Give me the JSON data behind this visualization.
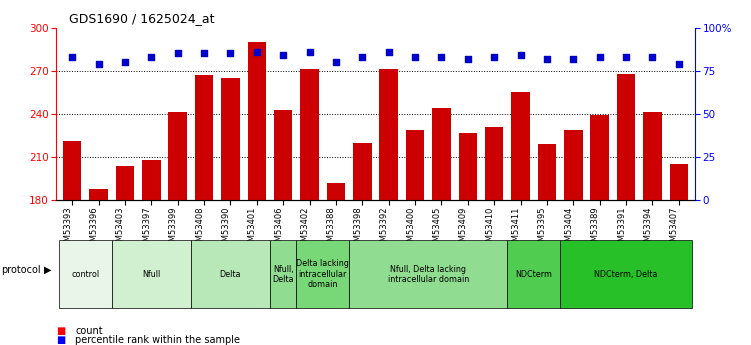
{
  "title": "GDS1690 / 1625024_at",
  "samples": [
    "GSM53393",
    "GSM53396",
    "GSM53403",
    "GSM53397",
    "GSM53399",
    "GSM53408",
    "GSM53390",
    "GSM53401",
    "GSM53406",
    "GSM53402",
    "GSM53388",
    "GSM53398",
    "GSM53392",
    "GSM53400",
    "GSM53405",
    "GSM53409",
    "GSM53410",
    "GSM53411",
    "GSM53395",
    "GSM53404",
    "GSM53389",
    "GSM53391",
    "GSM53394",
    "GSM53407"
  ],
  "counts": [
    221,
    188,
    204,
    208,
    241,
    267,
    265,
    290,
    243,
    271,
    192,
    220,
    271,
    229,
    244,
    227,
    231,
    255,
    219,
    229,
    239,
    268,
    241,
    205
  ],
  "percentile_ranks": [
    83,
    79,
    80,
    83,
    85,
    85,
    85,
    86,
    84,
    86,
    80,
    83,
    86,
    83,
    83,
    82,
    83,
    84,
    82,
    82,
    83,
    83,
    83,
    79
  ],
  "ylim_left": [
    180,
    300
  ],
  "ylim_right": [
    0,
    100
  ],
  "yticks_left": [
    180,
    210,
    240,
    270,
    300
  ],
  "yticks_right": [
    0,
    25,
    50,
    75,
    100
  ],
  "bar_color": "#cc0000",
  "dot_color": "#0000cc",
  "protocol_groups": [
    {
      "label": "control",
      "start": 0,
      "end": 2,
      "color": "#e8f5e8"
    },
    {
      "label": "Nfull",
      "start": 2,
      "end": 5,
      "color": "#d0f0d0"
    },
    {
      "label": "Delta",
      "start": 5,
      "end": 8,
      "color": "#b8e8b8"
    },
    {
      "label": "Nfull,\nDelta",
      "start": 8,
      "end": 9,
      "color": "#90dc90"
    },
    {
      "label": "Delta lacking\nintracellular\ndomain",
      "start": 9,
      "end": 11,
      "color": "#78d878"
    },
    {
      "label": "Nfull, Delta lacking\nintracellular domain",
      "start": 11,
      "end": 17,
      "color": "#90dc90"
    },
    {
      "label": "NDCterm",
      "start": 17,
      "end": 19,
      "color": "#50cc50"
    },
    {
      "label": "NDCterm, Delta",
      "start": 19,
      "end": 24,
      "color": "#28c028"
    }
  ],
  "background_color": "#ffffff"
}
